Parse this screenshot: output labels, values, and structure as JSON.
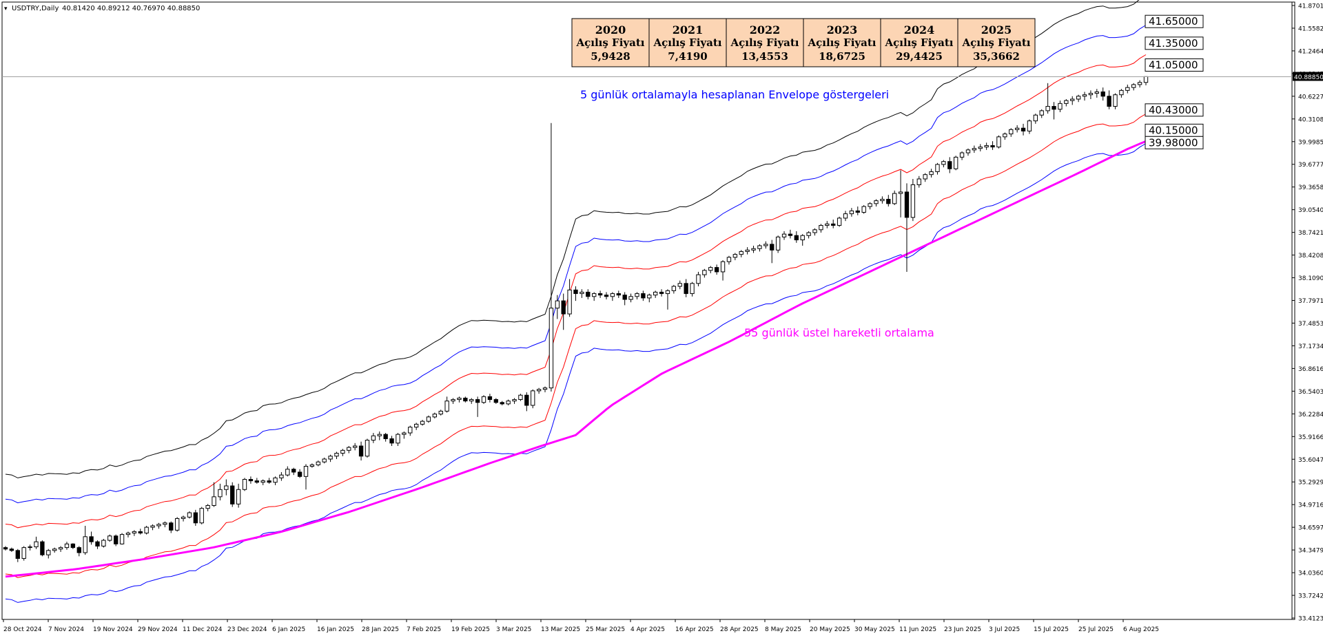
{
  "window": {
    "title": "USDTRY,Daily",
    "ohlc": "40.81420 40.89212 40.76970 40.88850"
  },
  "colors": {
    "envelope_outer": "#000000",
    "envelope_mid": "#0000ff",
    "envelope_inner": "#ff0000",
    "ema": "#ff00ff",
    "annotation_envelope": "#0000ff",
    "annotation_ema": "#ff00ff",
    "year_box_fill": "#fcd5b4",
    "candle": "#000000"
  },
  "chart_data": {
    "type": "candlestick",
    "symbol": "USDTRY",
    "timeframe": "Daily",
    "current_price": "40.88850",
    "ylim": [
      33.41,
      41.87
    ],
    "y_ticks": [
      "41.87010",
      "41.55825",
      "41.24640",
      "40.93455",
      "40.62270",
      "40.31085",
      "39.99855",
      "39.67770",
      "39.36585",
      "39.05400",
      "38.74215",
      "38.42085",
      "38.10900",
      "37.79715",
      "37.48530",
      "37.17345",
      "36.86160",
      "36.54030",
      "36.22845",
      "35.91660",
      "35.60475",
      "35.29290",
      "34.97160",
      "34.65975",
      "34.34790",
      "34.03605",
      "33.72420",
      "33.41235"
    ],
    "x_ticks": [
      "28 Oct 2024",
      "7 Nov 2024",
      "19 Nov 2024",
      "29 Nov 2024",
      "11 Dec 2024",
      "23 Dec 2024",
      "6 Jan 2025",
      "16 Jan 2025",
      "28 Jan 2025",
      "7 Feb 2025",
      "19 Feb 2025",
      "3 Mar 2025",
      "13 Mar 2025",
      "25 Mar 2025",
      "4 Apr 2025",
      "16 Apr 2025",
      "28 Apr 2025",
      "8 May 2025",
      "20 May 2025",
      "30 May 2025",
      "11 Jun 2025",
      "23 Jun 2025",
      "3 Jul 2025",
      "15 Jul 2025",
      "25 Jul 2025",
      "6 Aug 2025"
    ],
    "price_labels": [
      "41.65000",
      "41.35000",
      "41.05000",
      "40.43000",
      "40.15000",
      "39.98000"
    ],
    "annotations": {
      "envelope": "5 günlük ortalamayla hesaplanan Envelope göstergeleri",
      "ema": "55 günlük üstel hareketli ortalama"
    },
    "year_opens": [
      {
        "year": "2020",
        "label": "Açılış Fiyatı",
        "value": "5,9428"
      },
      {
        "year": "2021",
        "label": "Açılış Fiyatı",
        "value": "7,4190"
      },
      {
        "year": "2022",
        "label": "Açılış Fiyatı",
        "value": "13,4553"
      },
      {
        "year": "2023",
        "label": "Açılış Fiyatı",
        "value": "18,6725"
      },
      {
        "year": "2024",
        "label": "Açılış Fiyatı",
        "value": "29,4425"
      },
      {
        "year": "2025",
        "label": "Açılış Fiyatı",
        "value": "35,3662"
      }
    ],
    "ema_path": [
      [
        0,
        34.0
      ],
      [
        20,
        34.1
      ],
      [
        40,
        34.24
      ],
      [
        60,
        34.4
      ],
      [
        80,
        34.62
      ],
      [
        100,
        34.9
      ],
      [
        120,
        35.22
      ],
      [
        140,
        35.56
      ],
      [
        155,
        35.8
      ],
      [
        165,
        35.95
      ],
      [
        175,
        36.35
      ],
      [
        190,
        36.8
      ],
      [
        210,
        37.25
      ],
      [
        230,
        37.75
      ],
      [
        250,
        38.2
      ],
      [
        270,
        38.65
      ],
      [
        290,
        39.1
      ],
      [
        310,
        39.55
      ],
      [
        325,
        39.9
      ],
      [
        330,
        40.0
      ]
    ],
    "envelope_offsets_pct": {
      "outer": 3.0,
      "mid": 2.0,
      "inner": 1.0
    },
    "candles": [
      [
        34.4,
        34.42,
        34.36,
        34.38
      ],
      [
        34.38,
        34.4,
        34.34,
        34.36
      ],
      [
        34.36,
        34.38,
        34.2,
        34.25
      ],
      [
        34.25,
        34.42,
        34.22,
        34.4
      ],
      [
        34.4,
        34.44,
        34.36,
        34.41
      ],
      [
        34.41,
        34.55,
        34.38,
        34.48
      ],
      [
        34.48,
        34.5,
        34.28,
        34.3
      ],
      [
        34.3,
        34.38,
        34.25,
        34.36
      ],
      [
        34.36,
        34.4,
        34.33,
        34.38
      ],
      [
        34.38,
        34.42,
        34.34,
        34.4
      ],
      [
        34.4,
        34.48,
        34.37,
        34.45
      ],
      [
        34.45,
        34.46,
        34.38,
        34.4
      ],
      [
        34.4,
        34.42,
        34.28,
        34.33
      ],
      [
        34.33,
        34.7,
        34.3,
        34.55
      ],
      [
        34.55,
        34.62,
        34.44,
        34.48
      ],
      [
        34.48,
        34.5,
        34.38,
        34.42
      ],
      [
        34.42,
        34.52,
        34.4,
        34.5
      ],
      [
        34.5,
        34.58,
        34.48,
        34.56
      ],
      [
        34.56,
        34.58,
        34.42,
        34.45
      ],
      [
        34.45,
        34.6,
        34.44,
        34.58
      ],
      [
        34.58,
        34.62,
        34.54,
        34.6
      ],
      [
        34.6,
        34.64,
        34.56,
        34.62
      ],
      [
        34.62,
        34.66,
        34.58,
        34.6
      ],
      [
        34.6,
        34.7,
        34.58,
        34.68
      ],
      [
        34.68,
        34.72,
        34.64,
        34.7
      ],
      [
        34.7,
        34.74,
        34.66,
        34.72
      ],
      [
        34.72,
        34.76,
        34.68,
        34.74
      ],
      [
        34.74,
        34.76,
        34.6,
        34.64
      ],
      [
        34.64,
        34.82,
        34.62,
        34.8
      ],
      [
        34.8,
        34.84,
        34.76,
        34.82
      ],
      [
        34.82,
        34.9,
        34.8,
        34.88
      ],
      [
        34.88,
        34.92,
        34.7,
        34.74
      ],
      [
        34.74,
        34.96,
        34.72,
        34.94
      ],
      [
        34.94,
        35.0,
        34.9,
        34.98
      ],
      [
        34.98,
        35.3,
        34.96,
        35.1
      ],
      [
        35.1,
        35.28,
        35.05,
        35.2
      ],
      [
        35.2,
        35.34,
        35.12,
        35.25
      ],
      [
        35.25,
        35.3,
        34.96,
        35.0
      ],
      [
        35.0,
        35.28,
        34.95,
        35.2
      ],
      [
        35.2,
        35.36,
        35.18,
        35.34
      ],
      [
        35.34,
        35.38,
        35.28,
        35.32
      ],
      [
        35.32,
        35.36,
        35.28,
        35.3
      ],
      [
        35.3,
        35.34,
        35.26,
        35.32
      ],
      [
        35.32,
        35.36,
        35.28,
        35.3
      ],
      [
        35.3,
        35.38,
        35.26,
        35.36
      ],
      [
        35.36,
        35.44,
        35.32,
        35.4
      ],
      [
        35.4,
        35.52,
        35.38,
        35.48
      ],
      [
        35.48,
        35.5,
        35.4,
        35.44
      ],
      [
        35.44,
        35.48,
        35.36,
        35.38
      ],
      [
        35.38,
        35.55,
        35.2,
        35.52
      ],
      [
        35.52,
        35.56,
        35.5,
        35.54
      ],
      [
        35.54,
        35.6,
        35.52,
        35.58
      ],
      [
        35.58,
        35.64,
        35.56,
        35.62
      ],
      [
        35.62,
        35.68,
        35.58,
        35.66
      ],
      [
        35.66,
        35.72,
        35.62,
        35.7
      ],
      [
        35.7,
        35.76,
        35.66,
        35.74
      ],
      [
        35.74,
        35.8,
        35.7,
        35.78
      ],
      [
        35.78,
        35.84,
        35.74,
        35.8
      ],
      [
        35.8,
        35.86,
        35.6,
        35.66
      ],
      [
        35.66,
        35.9,
        35.64,
        35.88
      ],
      [
        35.88,
        35.98,
        35.84,
        35.94
      ],
      [
        35.94,
        36.0,
        35.88,
        35.96
      ],
      [
        35.96,
        35.98,
        35.86,
        35.9
      ],
      [
        35.9,
        35.94,
        35.8,
        35.84
      ],
      [
        35.84,
        35.98,
        35.8,
        35.96
      ],
      [
        35.96,
        36.0,
        35.9,
        35.98
      ],
      [
        35.98,
        36.08,
        35.94,
        36.06
      ],
      [
        36.06,
        36.12,
        36.02,
        36.1
      ],
      [
        36.1,
        36.16,
        36.08,
        36.14
      ],
      [
        36.14,
        36.22,
        36.12,
        36.2
      ],
      [
        36.2,
        36.26,
        36.18,
        36.24
      ],
      [
        36.24,
        36.3,
        36.22,
        36.28
      ],
      [
        36.28,
        36.48,
        36.26,
        36.42
      ],
      [
        36.42,
        36.46,
        36.38,
        36.44
      ],
      [
        36.44,
        36.48,
        36.4,
        36.46
      ],
      [
        36.46,
        36.48,
        36.4,
        36.42
      ],
      [
        36.42,
        36.46,
        36.38,
        36.44
      ],
      [
        36.44,
        36.48,
        36.2,
        36.4
      ],
      [
        36.4,
        36.5,
        36.38,
        36.48
      ],
      [
        36.48,
        36.52,
        36.4,
        36.44
      ],
      [
        36.44,
        36.46,
        36.38,
        36.4
      ],
      [
        36.4,
        36.42,
        36.36,
        36.38
      ],
      [
        36.38,
        36.44,
        36.36,
        36.42
      ],
      [
        36.42,
        36.46,
        36.38,
        36.44
      ],
      [
        36.44,
        36.52,
        36.42,
        36.5
      ],
      [
        36.5,
        36.54,
        36.28,
        36.36
      ],
      [
        36.36,
        36.58,
        36.32,
        36.56
      ],
      [
        36.56,
        36.6,
        36.52,
        36.58
      ],
      [
        36.58,
        36.62,
        36.54,
        36.6
      ],
      [
        36.6,
        40.25,
        36.55,
        37.7
      ],
      [
        37.7,
        37.88,
        37.55,
        37.8
      ],
      [
        37.8,
        37.9,
        37.4,
        37.62
      ],
      [
        37.62,
        38.1,
        37.58,
        37.95
      ],
      [
        37.95,
        38.0,
        37.8,
        37.9
      ],
      [
        37.9,
        37.96,
        37.84,
        37.92
      ],
      [
        37.92,
        37.96,
        37.82,
        37.86
      ],
      [
        37.86,
        37.92,
        37.8,
        37.9
      ],
      [
        37.9,
        37.94,
        37.84,
        37.88
      ],
      [
        37.88,
        37.92,
        37.82,
        37.86
      ],
      [
        37.86,
        37.92,
        37.8,
        37.9
      ],
      [
        37.9,
        37.94,
        37.84,
        37.88
      ],
      [
        37.88,
        37.92,
        37.74,
        37.82
      ],
      [
        37.82,
        37.9,
        37.78,
        37.86
      ],
      [
        37.86,
        37.92,
        37.82,
        37.9
      ],
      [
        37.9,
        37.94,
        37.8,
        37.84
      ],
      [
        37.84,
        37.9,
        37.78,
        37.88
      ],
      [
        37.88,
        37.94,
        37.84,
        37.92
      ],
      [
        37.92,
        37.96,
        37.86,
        37.9
      ],
      [
        37.9,
        37.96,
        37.68,
        37.94
      ],
      [
        37.94,
        38.02,
        37.9,
        38.0
      ],
      [
        38.0,
        38.08,
        37.96,
        38.04
      ],
      [
        38.04,
        38.1,
        37.85,
        37.9
      ],
      [
        37.9,
        38.06,
        37.86,
        38.04
      ],
      [
        38.04,
        38.2,
        38.0,
        38.16
      ],
      [
        38.16,
        38.24,
        38.12,
        38.22
      ],
      [
        38.22,
        38.28,
        38.18,
        38.26
      ],
      [
        38.26,
        38.3,
        38.16,
        38.2
      ],
      [
        38.2,
        38.36,
        38.08,
        38.34
      ],
      [
        38.34,
        38.42,
        38.3,
        38.4
      ],
      [
        38.4,
        38.46,
        38.36,
        38.44
      ],
      [
        38.44,
        38.5,
        38.4,
        38.48
      ],
      [
        38.48,
        38.54,
        38.44,
        38.5
      ],
      [
        38.5,
        38.56,
        38.46,
        38.52
      ],
      [
        38.52,
        38.58,
        38.48,
        38.56
      ],
      [
        38.56,
        38.62,
        38.52,
        38.58
      ],
      [
        38.58,
        38.64,
        38.32,
        38.5
      ],
      [
        38.5,
        38.7,
        38.46,
        38.68
      ],
      [
        38.68,
        38.76,
        38.64,
        38.72
      ],
      [
        38.72,
        38.78,
        38.66,
        38.7
      ],
      [
        38.7,
        38.76,
        38.6,
        38.64
      ],
      [
        38.64,
        38.72,
        38.56,
        38.7
      ],
      [
        38.7,
        38.76,
        38.66,
        38.74
      ],
      [
        38.74,
        38.8,
        38.7,
        38.78
      ],
      [
        38.78,
        38.86,
        38.74,
        38.84
      ],
      [
        38.84,
        38.9,
        38.8,
        38.86
      ],
      [
        38.86,
        38.92,
        38.8,
        38.84
      ],
      [
        38.84,
        38.96,
        38.82,
        38.94
      ],
      [
        38.94,
        39.04,
        38.9,
        39.0
      ],
      [
        39.0,
        39.08,
        38.96,
        39.04
      ],
      [
        39.04,
        39.1,
        38.98,
        39.02
      ],
      [
        39.02,
        39.12,
        39.0,
        39.1
      ],
      [
        39.1,
        39.16,
        39.06,
        39.14
      ],
      [
        39.14,
        39.2,
        39.1,
        39.18
      ],
      [
        39.18,
        39.24,
        39.14,
        39.2
      ],
      [
        39.2,
        39.26,
        39.1,
        39.14
      ],
      [
        39.14,
        39.32,
        39.12,
        39.28
      ],
      [
        39.28,
        39.6,
        38.95,
        39.3
      ],
      [
        39.3,
        39.42,
        38.2,
        38.95
      ],
      [
        38.95,
        39.48,
        38.9,
        39.4
      ],
      [
        39.4,
        39.52,
        39.36,
        39.48
      ],
      [
        39.48,
        39.56,
        39.44,
        39.54
      ],
      [
        39.54,
        39.62,
        39.5,
        39.58
      ],
      [
        39.58,
        39.7,
        39.54,
        39.68
      ],
      [
        39.68,
        39.74,
        39.64,
        39.72
      ],
      [
        39.72,
        39.78,
        39.56,
        39.62
      ],
      [
        39.62,
        39.8,
        39.6,
        39.78
      ],
      [
        39.78,
        39.86,
        39.74,
        39.84
      ],
      [
        39.84,
        39.9,
        39.8,
        39.88
      ],
      [
        39.88,
        39.94,
        39.84,
        39.9
      ],
      [
        39.9,
        39.96,
        39.86,
        39.92
      ],
      [
        39.92,
        39.98,
        39.88,
        39.94
      ],
      [
        39.94,
        40.0,
        39.88,
        39.92
      ],
      [
        39.92,
        40.08,
        39.9,
        40.06
      ],
      [
        40.06,
        40.12,
        40.02,
        40.1
      ],
      [
        40.1,
        40.18,
        40.06,
        40.16
      ],
      [
        40.16,
        40.22,
        40.12,
        40.18
      ],
      [
        40.18,
        40.24,
        40.08,
        40.14
      ],
      [
        40.14,
        40.3,
        40.1,
        40.28
      ],
      [
        40.28,
        40.38,
        40.24,
        40.36
      ],
      [
        40.36,
        40.44,
        40.32,
        40.42
      ],
      [
        40.42,
        40.8,
        40.38,
        40.48
      ],
      [
        40.48,
        40.54,
        40.3,
        40.44
      ],
      [
        40.44,
        40.56,
        40.4,
        40.52
      ],
      [
        40.52,
        40.58,
        40.48,
        40.56
      ],
      [
        40.56,
        40.62,
        40.5,
        40.58
      ],
      [
        40.58,
        40.64,
        40.54,
        40.62
      ],
      [
        40.62,
        40.68,
        40.56,
        40.64
      ],
      [
        40.64,
        40.7,
        40.58,
        40.66
      ],
      [
        40.66,
        40.72,
        40.6,
        40.68
      ],
      [
        40.68,
        40.74,
        40.56,
        40.62
      ],
      [
        40.62,
        40.7,
        40.44,
        40.48
      ],
      [
        40.48,
        40.66,
        40.44,
        40.64
      ],
      [
        40.64,
        40.72,
        40.6,
        40.7
      ],
      [
        40.7,
        40.78,
        40.66,
        40.74
      ],
      [
        40.74,
        40.8,
        40.7,
        40.78
      ],
      [
        40.78,
        40.84,
        40.74,
        40.81
      ],
      [
        40.81,
        40.89,
        40.77,
        40.89
      ]
    ]
  }
}
